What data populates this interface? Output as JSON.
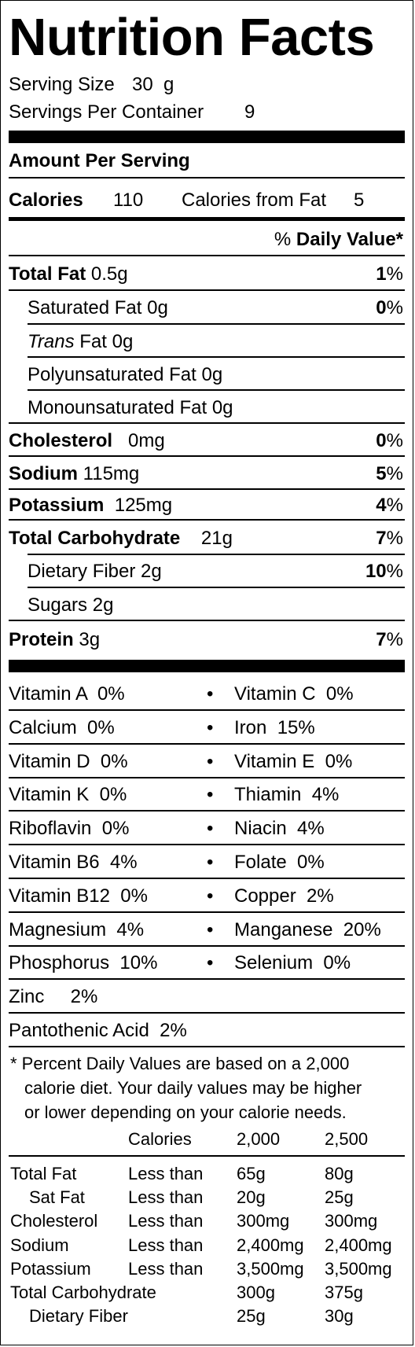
{
  "title": "Nutrition Facts",
  "serving_size_label": "Serving Size",
  "serving_size_value": "30  g",
  "servings_label": "Servings Per Container",
  "servings_value": "9",
  "amount_per_serving": "Amount Per Serving",
  "calories_label": "Calories",
  "calories_value": "110",
  "calories_fat_label": "Calories from Fat",
  "calories_fat_value": "5",
  "dv_percent": "%",
  "dv_label": "Daily Value*",
  "nutrients": [
    {
      "name": "Total Fat",
      "amount": "0.5g",
      "dv": "1",
      "pct": "%"
    },
    {
      "name": "Saturated Fat",
      "amount": "0g",
      "dv": "0",
      "pct": "%"
    },
    {
      "name": "Trans",
      "amount": "Fat 0g"
    },
    {
      "name": "Polyunsaturated Fat",
      "amount": "0g"
    },
    {
      "name": "Monounsaturated Fat",
      "amount": "0g"
    },
    {
      "name": "Cholesterol",
      "amount": "0mg",
      "dv": "0",
      "pct": "%"
    },
    {
      "name": "Sodium",
      "amount": "115mg",
      "dv": "5",
      "pct": "%"
    },
    {
      "name": "Potassium",
      "amount": "125mg",
      "dv": "4",
      "pct": "%"
    },
    {
      "name": "Total Carbohydrate",
      "amount": "21g",
      "dv": "7",
      "pct": "%"
    },
    {
      "name": "Dietary Fiber",
      "amount": "2g",
      "dv": "10",
      "pct": "%"
    },
    {
      "name": "Sugars",
      "amount": "2g"
    },
    {
      "name": "Protein",
      "amount": "3g",
      "dv": "7",
      "pct": "%"
    }
  ],
  "bullet": "•",
  "vitamins": [
    {
      "left": "Vitamin A  0%",
      "right": "Vitamin C  0%"
    },
    {
      "left": "Calcium  0%",
      "right": "Iron  15%"
    },
    {
      "left": "Vitamin D  0%",
      "right": "Vitamin E  0%"
    },
    {
      "left": "Vitamin K  0%",
      "right": "Thiamin  4%"
    },
    {
      "left": "Riboflavin  0%",
      "right": "Niacin  4%"
    },
    {
      "left": "Vitamin B6  4%",
      "right": "Folate  0%"
    },
    {
      "left": "Vitamin B12  0%",
      "right": "Copper  2%"
    },
    {
      "left": "Magnesium  4%",
      "right": "Manganese  20%"
    },
    {
      "left": "Phosphorus  10%",
      "right": "Selenium  0%"
    },
    {
      "left": "Zinc     2%"
    },
    {
      "left": "Pantothenic Acid  2%"
    }
  ],
  "footnote": [
    "* Percent Daily Values are based on a 2,000",
    "calorie diet. Your daily values may be higher",
    "or lower depending on your calorie needs."
  ],
  "ref_header": {
    "col1": "Calories",
    "col2": "2,000",
    "col3": "2,500"
  },
  "ref_rows": [
    {
      "name": "Total Fat",
      "cond": "Less than",
      "v1": "65g",
      "v2": "80g"
    },
    {
      "name": "Sat Fat",
      "cond": "Less than",
      "v1": "20g",
      "v2": "25g"
    },
    {
      "name": "Cholesterol",
      "cond": "Less than",
      "v1": "300mg",
      "v2": "300mg"
    },
    {
      "name": "Sodium",
      "cond": "Less than",
      "v1": "2,400mg",
      "v2": "2,400mg"
    },
    {
      "name": "Potassium",
      "cond": "Less than",
      "v1": "3,500mg",
      "v2": "3,500mg"
    },
    {
      "name": "Total Carbohydrate",
      "cond": "",
      "v1": "300g",
      "v2": "375g"
    },
    {
      "name": "Dietary Fiber",
      "cond": "",
      "v1": "25g",
      "v2": "30g"
    }
  ]
}
